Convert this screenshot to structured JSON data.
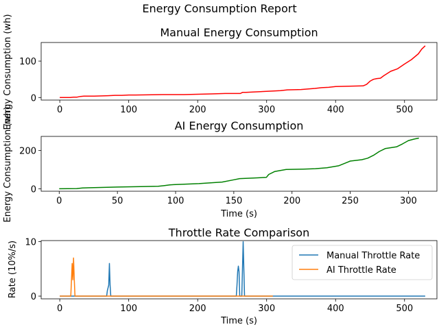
{
  "figure_title": "Energy Consumption Report",
  "chart_data": [
    {
      "type": "line",
      "title": "Manual Energy Consumption",
      "xlabel": "",
      "ylabel": "Energy Consumption (wh)",
      "xlim": [
        -27,
        547
      ],
      "ylim": [
        -7,
        151
      ],
      "xticks": [
        0,
        100,
        200,
        300,
        400,
        500
      ],
      "yticks": [
        0,
        100
      ],
      "color": "#ff0000",
      "series": [
        {
          "x": [
            0,
            10,
            15,
            20,
            25,
            30,
            35,
            50,
            70,
            80,
            90,
            100,
            110,
            150,
            180,
            200,
            220,
            240,
            255,
            262,
            265,
            270,
            280,
            300,
            320,
            330,
            350,
            370,
            380,
            390,
            400,
            420,
            440,
            445,
            450,
            455,
            460,
            465,
            470,
            480,
            490,
            500,
            510,
            520,
            525,
            530
          ],
          "y": [
            0,
            0,
            0,
            1,
            1,
            3,
            4,
            4,
            5,
            6,
            6,
            7,
            7,
            8,
            8,
            9,
            10,
            11,
            11,
            11,
            14,
            14,
            15,
            17,
            19,
            21,
            22,
            25,
            27,
            28,
            30,
            31,
            32,
            36,
            45,
            50,
            52,
            53,
            60,
            72,
            79,
            92,
            104,
            120,
            133,
            142
          ]
        }
      ]
    },
    {
      "type": "line",
      "title": "AI Energy Consumption",
      "xlabel": "Time (s)",
      "ylabel": "Energy Consumption (wh)",
      "xlim": [
        -15.5,
        324.5
      ],
      "ylim": [
        -13,
        274
      ],
      "xticks": [
        0,
        50,
        100,
        150,
        200,
        250,
        300
      ],
      "yticks": [
        0,
        200
      ],
      "color": "#008000",
      "series": [
        {
          "x": [
            0,
            15,
            20,
            30,
            50,
            70,
            85,
            90,
            95,
            100,
            120,
            140,
            150,
            155,
            170,
            178,
            180,
            185,
            195,
            210,
            220,
            230,
            240,
            250,
            260,
            265,
            270,
            275,
            280,
            290,
            295,
            300,
            305,
            309
          ],
          "y": [
            0,
            1,
            4,
            6,
            9,
            11,
            13,
            16,
            20,
            22,
            27,
            35,
            47,
            53,
            57,
            60,
            75,
            90,
            101,
            103,
            105,
            110,
            120,
            145,
            152,
            160,
            175,
            195,
            210,
            220,
            235,
            252,
            260,
            265
          ]
        }
      ]
    },
    {
      "type": "line",
      "title": "Throttle Rate Comparison",
      "xlabel": "Time (s)",
      "ylabel": "Rate (10%/s)",
      "xlim": [
        -27,
        547
      ],
      "ylim": [
        -0.5,
        10.2
      ],
      "xticks": [
        0,
        100,
        200,
        300,
        400,
        500
      ],
      "yticks": [
        0,
        10
      ],
      "legend_position": "top-right",
      "series": [
        {
          "name": "Manual Throttle Rate",
          "color": "#1f77b4",
          "x": [
            0,
            68,
            69,
            70,
            71,
            72,
            73,
            74,
            75,
            256,
            257,
            258,
            259,
            260,
            261,
            262,
            263,
            264,
            265,
            266,
            267,
            268,
            269,
            270,
            530
          ],
          "y": [
            0,
            0,
            1,
            1.5,
            2,
            6,
            2,
            0,
            0,
            0,
            2,
            4.5,
            5.5,
            4.5,
            0,
            0,
            0,
            0,
            5,
            10,
            5,
            0,
            0,
            0,
            0
          ]
        },
        {
          "name": "AI Throttle Rate",
          "color": "#ff7f0e",
          "x": [
            0,
            16,
            17,
            18,
            19,
            20,
            21,
            22,
            23,
            309
          ],
          "y": [
            0,
            0,
            3,
            6,
            3,
            7,
            3,
            0,
            0,
            0
          ]
        }
      ]
    }
  ]
}
